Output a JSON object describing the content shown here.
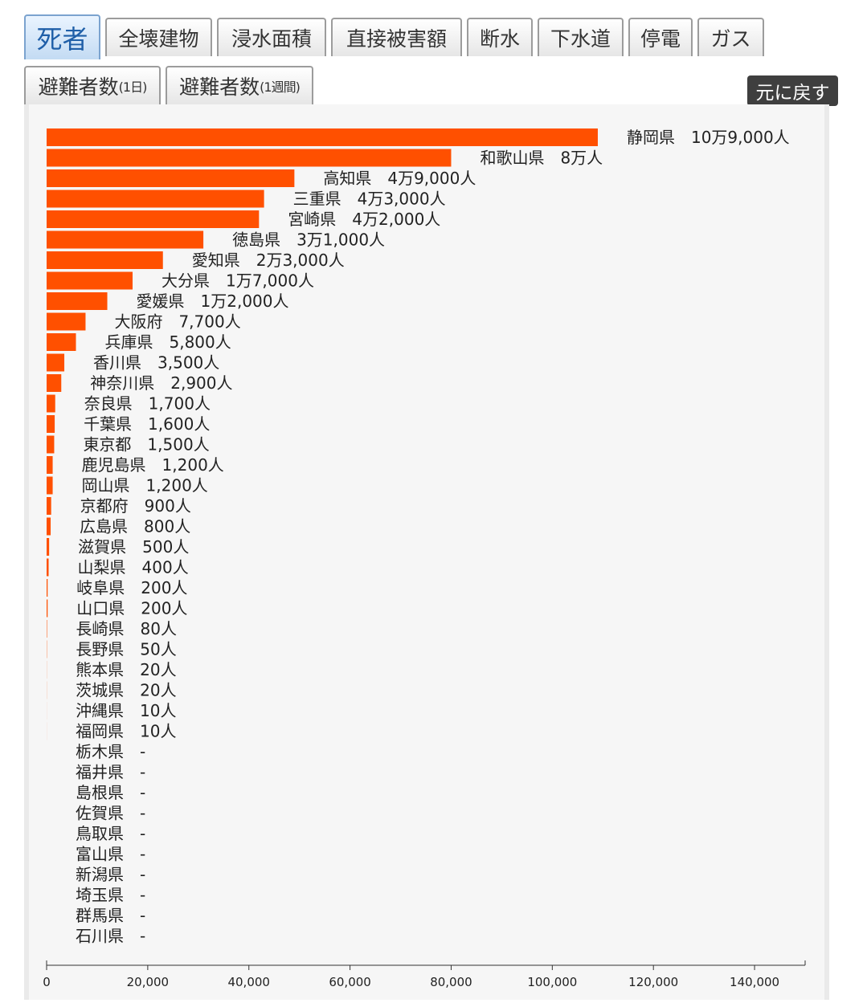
{
  "tabs_row1": [
    {
      "label": "死者",
      "active": true
    },
    {
      "label": "全壊建物"
    },
    {
      "label": "浸水面積"
    },
    {
      "label": "直接被害額"
    },
    {
      "label": "断水"
    },
    {
      "label": "下水道"
    },
    {
      "label": "停電"
    },
    {
      "label": "ガス"
    }
  ],
  "tabs_row2": [
    {
      "label": "避難者数",
      "suffix": "(1日)"
    },
    {
      "label": "避難者数",
      "suffix": "(1週間)"
    }
  ],
  "reset_label": "元に戻す",
  "colors": {
    "bar": "#ff5000",
    "axis": "#333333"
  },
  "chart_data": {
    "type": "bar",
    "orientation": "horizontal",
    "xlim": [
      0,
      150000
    ],
    "xticks": [
      0,
      20000,
      40000,
      60000,
      80000,
      100000,
      120000,
      140000
    ],
    "xtick_labels": [
      "0",
      "20,000",
      "40,000",
      "60,000",
      "80,000",
      "100,000",
      "120,000",
      "140,000"
    ],
    "categories": [
      "静岡県",
      "和歌山県",
      "高知県",
      "三重県",
      "宮崎県",
      "徳島県",
      "愛知県",
      "大分県",
      "愛媛県",
      "大阪府",
      "兵庫県",
      "香川県",
      "神奈川県",
      "奈良県",
      "千葉県",
      "東京都",
      "鹿児島県",
      "岡山県",
      "京都府",
      "広島県",
      "滋賀県",
      "山梨県",
      "岐阜県",
      "山口県",
      "長崎県",
      "長野県",
      "熊本県",
      "茨城県",
      "沖縄県",
      "福岡県",
      "栃木県",
      "福井県",
      "島根県",
      "佐賀県",
      "鳥取県",
      "富山県",
      "新潟県",
      "埼玉県",
      "群馬県",
      "石川県"
    ],
    "values": [
      109000,
      80000,
      49000,
      43000,
      42000,
      31000,
      23000,
      17000,
      12000,
      7700,
      5800,
      3500,
      2900,
      1700,
      1600,
      1500,
      1200,
      1200,
      900,
      800,
      500,
      400,
      200,
      200,
      80,
      50,
      20,
      20,
      10,
      10,
      null,
      null,
      null,
      null,
      null,
      null,
      null,
      null,
      null,
      null
    ],
    "value_labels": [
      "10万9,000人",
      "8万人",
      "4万9,000人",
      "4万3,000人",
      "4万2,000人",
      "3万1,000人",
      "2万3,000人",
      "1万7,000人",
      "1万2,000人",
      "7,700人",
      "5,800人",
      "3,500人",
      "2,900人",
      "1,700人",
      "1,600人",
      "1,500人",
      "1,200人",
      "1,200人",
      "900人",
      "800人",
      "500人",
      "400人",
      "200人",
      "200人",
      "80人",
      "50人",
      "20人",
      "20人",
      "10人",
      "10人",
      "-",
      "-",
      "-",
      "-",
      "-",
      "-",
      "-",
      "-",
      "-",
      "-"
    ]
  }
}
